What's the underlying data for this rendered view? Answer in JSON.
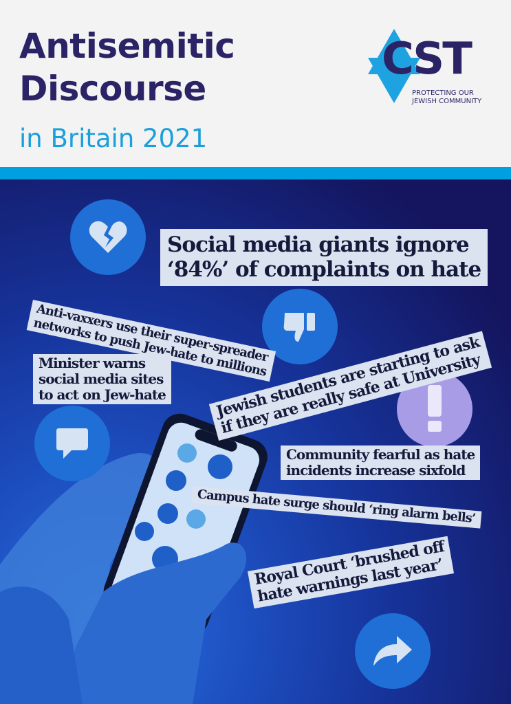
{
  "header": {
    "title_line1": "Antisemitic",
    "title_line2": "Discourse",
    "subtitle": "in Britain 2021"
  },
  "logo": {
    "text": "CST",
    "tagline_line1": "PROTECTING OUR",
    "tagline_line2": "JEWISH COMMUNITY"
  },
  "colors": {
    "navy": "#2a2466",
    "accent": "#009fe0",
    "headline_bg": "#dbe2f0"
  },
  "icons": [
    "broken-heart-icon",
    "thumbs-down-icon",
    "exclamation-icon",
    "speech-bubble-icon",
    "share-arrow-icon"
  ],
  "headlines": [
    {
      "lines": [
        "Social media giants ignore",
        "‘84%’ of complaints on hate"
      ]
    },
    {
      "lines": [
        "Anti-vaxxers use their super-spreader",
        "networks to push Jew-hate to millions"
      ]
    },
    {
      "lines": [
        "Jewish students are starting to ask",
        "if they are really safe at University"
      ]
    },
    {
      "lines": [
        "Minister warns",
        "social media sites",
        "to act on Jew-hate"
      ]
    },
    {
      "lines": [
        "Community fearful as hate",
        "incidents increase sixfold"
      ]
    },
    {
      "lines": [
        "Campus hate surge should ‘ring alarm bells’"
      ]
    },
    {
      "lines": [
        "Royal Court ‘brushed off",
        "hate warnings last year’"
      ]
    }
  ]
}
